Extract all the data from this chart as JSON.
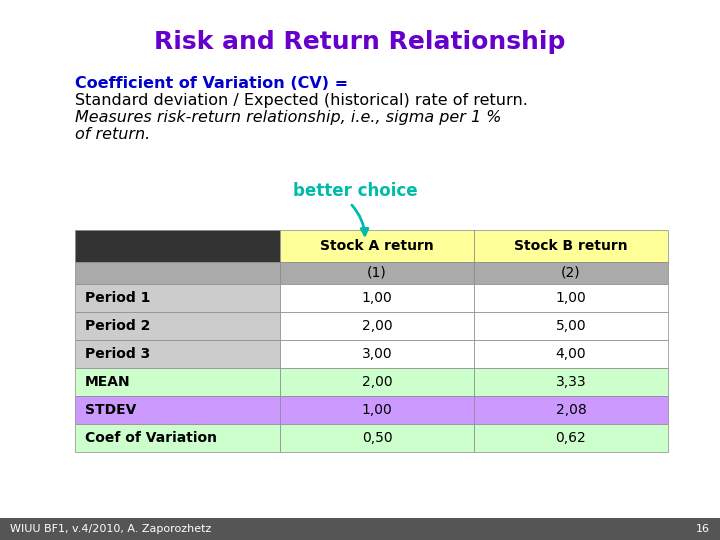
{
  "title": "Risk and Return Relationship",
  "title_color": "#6600cc",
  "title_fontsize": 18,
  "body_text_line1": "Coefficient of Variation (CV) =",
  "body_text_line1_color": "#0000cc",
  "body_text_line2": "Standard deviation / Expected (historical) rate of return.",
  "body_text_line3": "Measures risk-return relationship, i.e., sigma per 1 %",
  "body_text_line4": "of return.",
  "body_text_color": "#000000",
  "body_fontsize": 11.5,
  "better_choice_text": "better choice",
  "better_choice_color": "#00bbaa",
  "better_choice_fontsize": 12,
  "footer_text": "WIUU BF1, v.4/2010, A. Zaporozhetz",
  "footer_page": "16",
  "footer_color": "#ffffff",
  "footer_fontsize": 8,
  "background_color": "#ffffff",
  "footer_bg_color": "#555555",
  "table_header_row1": [
    "",
    "Stock A return",
    "Stock B return"
  ],
  "table_header_row2": [
    "",
    "(1)",
    "(2)"
  ],
  "table_rows": [
    [
      "Period 1",
      "1,00",
      "1,00"
    ],
    [
      "Period 2",
      "2,00",
      "5,00"
    ],
    [
      "Period 3",
      "3,00",
      "4,00"
    ],
    [
      "MEAN",
      "2,00",
      "3,33"
    ],
    [
      "STDEV",
      "1,00",
      "2,08"
    ],
    [
      "Coef of Variation",
      "0,50",
      "0,62"
    ]
  ],
  "col_header_bg": "#ffff99",
  "col_header_bg2": "#aaaaaa",
  "row_label_bg_period": "#cccccc",
  "row_colors": [
    "#ffffff",
    "#ffffff",
    "#ffffff",
    "#ccffcc",
    "#cc99ff",
    "#ccffcc"
  ],
  "dark_header_bg": "#333333",
  "table_text_color": "#000000",
  "table_fontsize": 10
}
